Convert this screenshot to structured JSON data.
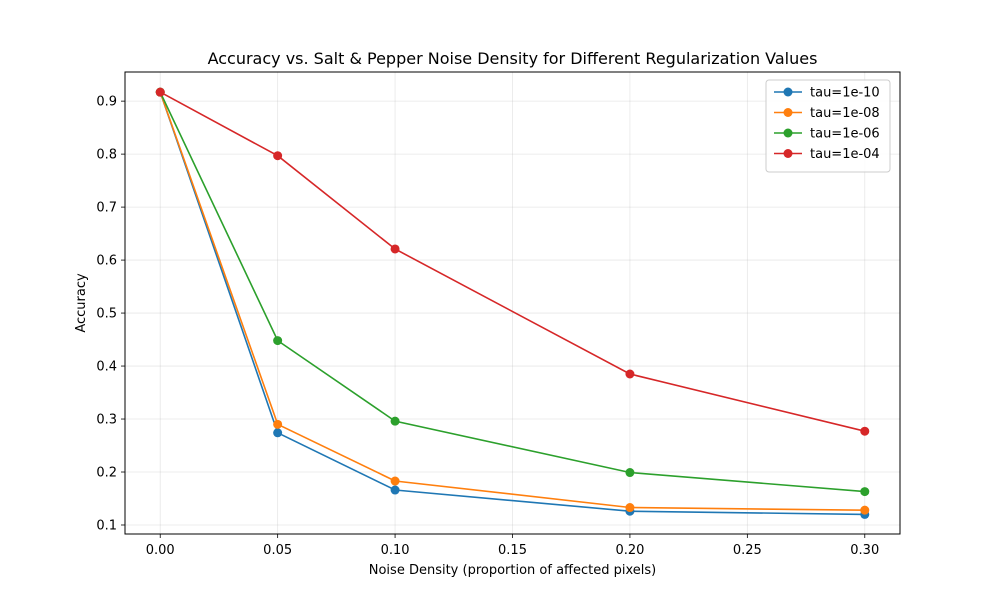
{
  "chart_data": {
    "type": "line",
    "title": "Accuracy vs. Salt & Pepper Noise Density for Different Regularization Values",
    "xlabel": "Noise Density (proportion of affected pixels)",
    "ylabel": "Accuracy",
    "x": [
      0.0,
      0.05,
      0.1,
      0.2,
      0.3
    ],
    "xlim": [
      -0.015,
      0.315
    ],
    "ylim": [
      0.083,
      0.955
    ],
    "xticks": [
      0.0,
      0.05,
      0.1,
      0.15,
      0.2,
      0.25,
      0.3
    ],
    "xtick_labels": [
      "0.00",
      "0.05",
      "0.10",
      "0.15",
      "0.20",
      "0.25",
      "0.30"
    ],
    "yticks": [
      0.1,
      0.2,
      0.3,
      0.4,
      0.5,
      0.6,
      0.7,
      0.8,
      0.9
    ],
    "ytick_labels": [
      "0.1",
      "0.2",
      "0.3",
      "0.4",
      "0.5",
      "0.6",
      "0.7",
      "0.8",
      "0.9"
    ],
    "grid": true,
    "legend_position": "top-right",
    "series": [
      {
        "name": "tau=1e-10",
        "color": "#1f77b4",
        "values": [
          0.917,
          0.274,
          0.166,
          0.126,
          0.12
        ]
      },
      {
        "name": "tau=1e-08",
        "color": "#ff7f0e",
        "values": [
          0.917,
          0.29,
          0.183,
          0.133,
          0.128
        ]
      },
      {
        "name": "tau=1e-06",
        "color": "#2ca02c",
        "values": [
          0.917,
          0.448,
          0.296,
          0.199,
          0.163
        ]
      },
      {
        "name": "tau=1e-04",
        "color": "#d62728",
        "values": [
          0.917,
          0.797,
          0.621,
          0.385,
          0.277
        ]
      }
    ]
  }
}
